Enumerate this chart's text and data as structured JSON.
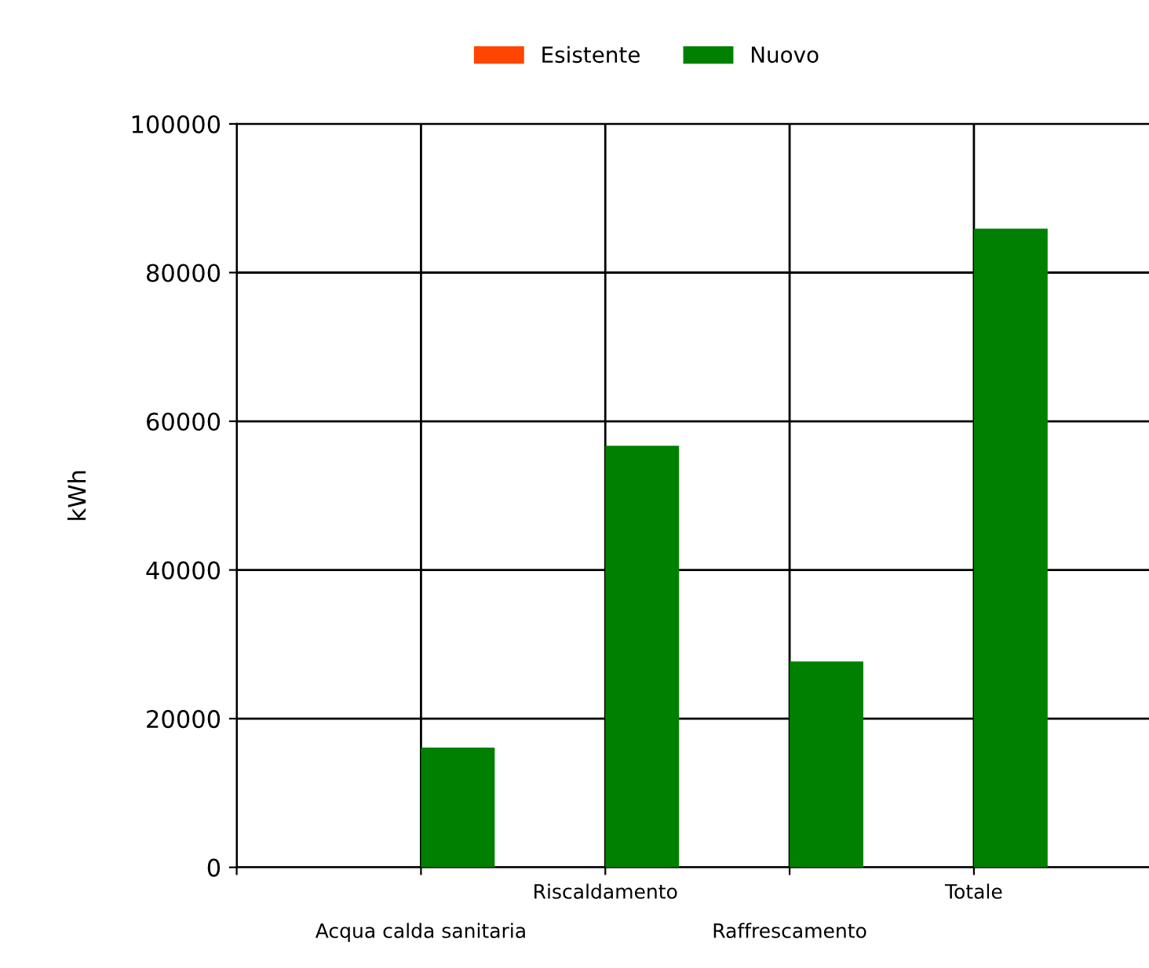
{
  "chart_data": {
    "type": "bar",
    "ylabel": "kWh",
    "categories": [
      "Acqua calda sanitaria",
      "Riscaldamento",
      "Raffrescamento",
      "Totale"
    ],
    "series": [
      {
        "name": "Esistente",
        "color": "#ff4500",
        "values": [
          0,
          0,
          0,
          0
        ]
      },
      {
        "name": "Nuovo",
        "color": "#008000",
        "values": [
          16100,
          56700,
          27700,
          85900
        ]
      }
    ],
    "ylim": [
      0,
      100000
    ],
    "yticks": [
      0,
      20000,
      40000,
      60000,
      80000,
      100000
    ],
    "grid": true,
    "legend": "top"
  }
}
